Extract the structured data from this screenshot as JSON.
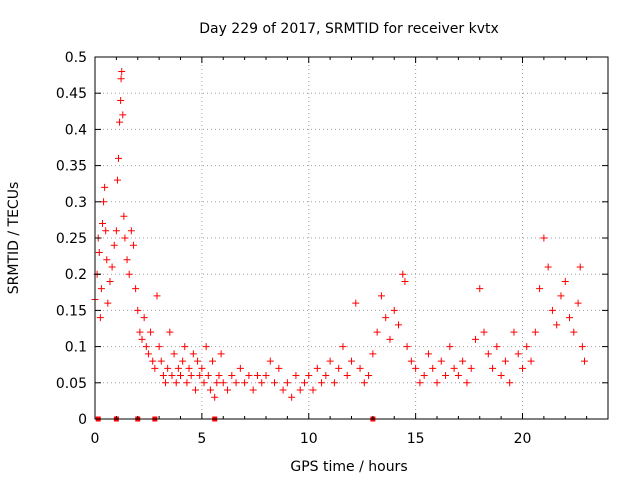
{
  "chart_data": {
    "type": "scatter",
    "title": "Day 229 of 2017, SRMTID for receiver kvtx",
    "xlabel": "GPS time / hours",
    "ylabel": "SRMTID / TECUs",
    "xlim": [
      0,
      24
    ],
    "ylim": [
      0,
      0.5
    ],
    "xticks": [
      "0",
      "5",
      "10",
      "15",
      "20"
    ],
    "yticks": [
      "0",
      "0.05",
      "0.1",
      "0.15",
      "0.2",
      "0.25",
      "0.3",
      "0.35",
      "0.4",
      "0.45",
      "0.5"
    ],
    "grid": true,
    "series": [
      {
        "name": "SRMTID",
        "color": "#ff0000",
        "marker": "plus",
        "points": [
          [
            0.0,
            0.165
          ],
          [
            0.1,
            0.2
          ],
          [
            0.15,
            0.25
          ],
          [
            0.2,
            0.23
          ],
          [
            0.25,
            0.14
          ],
          [
            0.3,
            0.18
          ],
          [
            0.35,
            0.27
          ],
          [
            0.4,
            0.3
          ],
          [
            0.45,
            0.32
          ],
          [
            0.5,
            0.26
          ],
          [
            0.55,
            0.22
          ],
          [
            0.6,
            0.16
          ],
          [
            0.7,
            0.19
          ],
          [
            0.8,
            0.21
          ],
          [
            0.9,
            0.24
          ],
          [
            1.0,
            0.26
          ],
          [
            1.05,
            0.33
          ],
          [
            1.1,
            0.36
          ],
          [
            1.15,
            0.41
          ],
          [
            1.2,
            0.44
          ],
          [
            1.22,
            0.47
          ],
          [
            1.25,
            0.48
          ],
          [
            1.3,
            0.42
          ],
          [
            1.35,
            0.28
          ],
          [
            1.4,
            0.25
          ],
          [
            1.5,
            0.22
          ],
          [
            1.6,
            0.2
          ],
          [
            1.7,
            0.26
          ],
          [
            1.8,
            0.24
          ],
          [
            1.9,
            0.18
          ],
          [
            2.0,
            0.15
          ],
          [
            2.1,
            0.12
          ],
          [
            2.2,
            0.11
          ],
          [
            2.3,
            0.14
          ],
          [
            2.4,
            0.1
          ],
          [
            2.5,
            0.09
          ],
          [
            2.6,
            0.12
          ],
          [
            2.7,
            0.08
          ],
          [
            2.8,
            0.07
          ],
          [
            2.9,
            0.17
          ],
          [
            3.0,
            0.1
          ],
          [
            3.1,
            0.08
          ],
          [
            3.2,
            0.06
          ],
          [
            3.3,
            0.05
          ],
          [
            3.4,
            0.07
          ],
          [
            3.5,
            0.12
          ],
          [
            3.6,
            0.06
          ],
          [
            3.7,
            0.09
          ],
          [
            3.8,
            0.05
          ],
          [
            3.9,
            0.07
          ],
          [
            4.0,
            0.06
          ],
          [
            4.1,
            0.08
          ],
          [
            4.2,
            0.1
          ],
          [
            4.3,
            0.05
          ],
          [
            4.4,
            0.07
          ],
          [
            4.5,
            0.06
          ],
          [
            4.6,
            0.09
          ],
          [
            4.7,
            0.04
          ],
          [
            4.8,
            0.08
          ],
          [
            4.9,
            0.06
          ],
          [
            5.0,
            0.07
          ],
          [
            5.1,
            0.05
          ],
          [
            5.2,
            0.1
          ],
          [
            5.3,
            0.06
          ],
          [
            5.4,
            0.04
          ],
          [
            5.5,
            0.08
          ],
          [
            5.6,
            0.03
          ],
          [
            5.7,
            0.05
          ],
          [
            5.8,
            0.06
          ],
          [
            5.9,
            0.09
          ],
          [
            6.0,
            0.05
          ],
          [
            6.2,
            0.04
          ],
          [
            6.4,
            0.06
          ],
          [
            6.6,
            0.05
          ],
          [
            6.8,
            0.07
          ],
          [
            7.0,
            0.05
          ],
          [
            7.2,
            0.06
          ],
          [
            7.4,
            0.04
          ],
          [
            7.6,
            0.06
          ],
          [
            7.8,
            0.05
          ],
          [
            8.0,
            0.06
          ],
          [
            8.2,
            0.08
          ],
          [
            8.4,
            0.05
          ],
          [
            8.6,
            0.07
          ],
          [
            8.8,
            0.04
          ],
          [
            9.0,
            0.05
          ],
          [
            9.2,
            0.03
          ],
          [
            9.4,
            0.06
          ],
          [
            9.6,
            0.04
          ],
          [
            9.8,
            0.05
          ],
          [
            10.0,
            0.06
          ],
          [
            10.2,
            0.04
          ],
          [
            10.4,
            0.07
          ],
          [
            10.6,
            0.05
          ],
          [
            10.8,
            0.06
          ],
          [
            11.0,
            0.08
          ],
          [
            11.2,
            0.05
          ],
          [
            11.4,
            0.07
          ],
          [
            11.6,
            0.1
          ],
          [
            11.8,
            0.06
          ],
          [
            12.0,
            0.08
          ],
          [
            12.2,
            0.16
          ],
          [
            12.4,
            0.07
          ],
          [
            12.6,
            0.05
          ],
          [
            12.8,
            0.06
          ],
          [
            13.0,
            0.09
          ],
          [
            13.2,
            0.12
          ],
          [
            13.4,
            0.17
          ],
          [
            13.6,
            0.14
          ],
          [
            13.8,
            0.11
          ],
          [
            14.0,
            0.15
          ],
          [
            14.2,
            0.13
          ],
          [
            14.4,
            0.2
          ],
          [
            14.5,
            0.19
          ],
          [
            14.6,
            0.1
          ],
          [
            14.8,
            0.08
          ],
          [
            15.0,
            0.07
          ],
          [
            15.2,
            0.05
          ],
          [
            15.4,
            0.06
          ],
          [
            15.6,
            0.09
          ],
          [
            15.8,
            0.07
          ],
          [
            16.0,
            0.05
          ],
          [
            16.2,
            0.08
          ],
          [
            16.4,
            0.06
          ],
          [
            16.6,
            0.1
          ],
          [
            16.8,
            0.07
          ],
          [
            17.0,
            0.06
          ],
          [
            17.2,
            0.08
          ],
          [
            17.4,
            0.05
          ],
          [
            17.6,
            0.07
          ],
          [
            17.8,
            0.11
          ],
          [
            18.0,
            0.18
          ],
          [
            18.2,
            0.12
          ],
          [
            18.4,
            0.09
          ],
          [
            18.6,
            0.07
          ],
          [
            18.8,
            0.1
          ],
          [
            19.0,
            0.06
          ],
          [
            19.2,
            0.08
          ],
          [
            19.4,
            0.05
          ],
          [
            19.6,
            0.12
          ],
          [
            19.8,
            0.09
          ],
          [
            20.0,
            0.07
          ],
          [
            20.2,
            0.1
          ],
          [
            20.4,
            0.08
          ],
          [
            20.6,
            0.12
          ],
          [
            20.8,
            0.18
          ],
          [
            21.0,
            0.25
          ],
          [
            21.2,
            0.21
          ],
          [
            21.4,
            0.15
          ],
          [
            21.6,
            0.13
          ],
          [
            21.8,
            0.17
          ],
          [
            22.0,
            0.19
          ],
          [
            22.2,
            0.14
          ],
          [
            22.4,
            0.12
          ],
          [
            22.6,
            0.16
          ],
          [
            22.7,
            0.21
          ],
          [
            22.8,
            0.1
          ],
          [
            22.9,
            0.08
          ]
        ]
      }
    ],
    "zero_markers_x": [
      0.15,
      1.0,
      2.0,
      2.8,
      5.6,
      13.0
    ]
  }
}
